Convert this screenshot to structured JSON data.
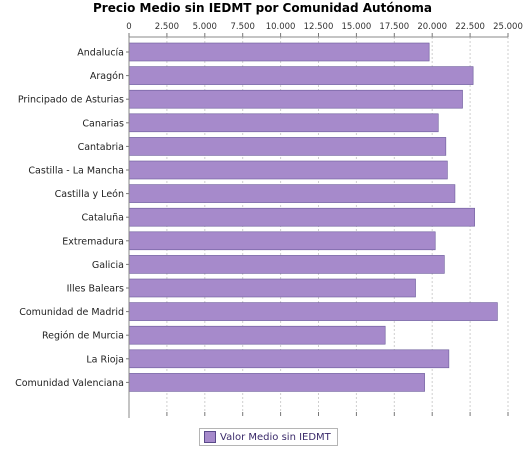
{
  "chart_data": {
    "type": "bar",
    "orientation": "horizontal",
    "title": "Precio Medio sin IEDMT por Comunidad Autónoma",
    "xlim": [
      0,
      25000
    ],
    "x_ticks": [
      0,
      2500,
      5000,
      7500,
      10000,
      12500,
      15000,
      17500,
      20000,
      22500,
      25000
    ],
    "x_tick_labels": [
      "0",
      "2.500",
      "5.000",
      "7.500",
      "10.000",
      "12.500",
      "15.000",
      "17.500",
      "20.000",
      "22.500",
      "25.000"
    ],
    "x_axis_position": "top",
    "grid": true,
    "legend_position": "bottom-center",
    "categories": [
      "Andalucía",
      "Aragón",
      "Principado de Asturias",
      "Canarias",
      "Cantabria",
      "Castilla - La Mancha",
      "Castilla y León",
      "Cataluña",
      "Extremadura",
      "Galicia",
      "Illes Balears",
      "Comunidad de Madrid",
      "Región de Murcia",
      "La Rioja",
      "Comunidad Valenciana"
    ],
    "series": [
      {
        "name": "Valor Medio sin IEDMT",
        "color": "#a68acb",
        "values": [
          19800,
          22700,
          22000,
          20400,
          20900,
          21000,
          21500,
          22800,
          20200,
          20800,
          18900,
          24300,
          16900,
          21100,
          19500
        ]
      }
    ]
  }
}
